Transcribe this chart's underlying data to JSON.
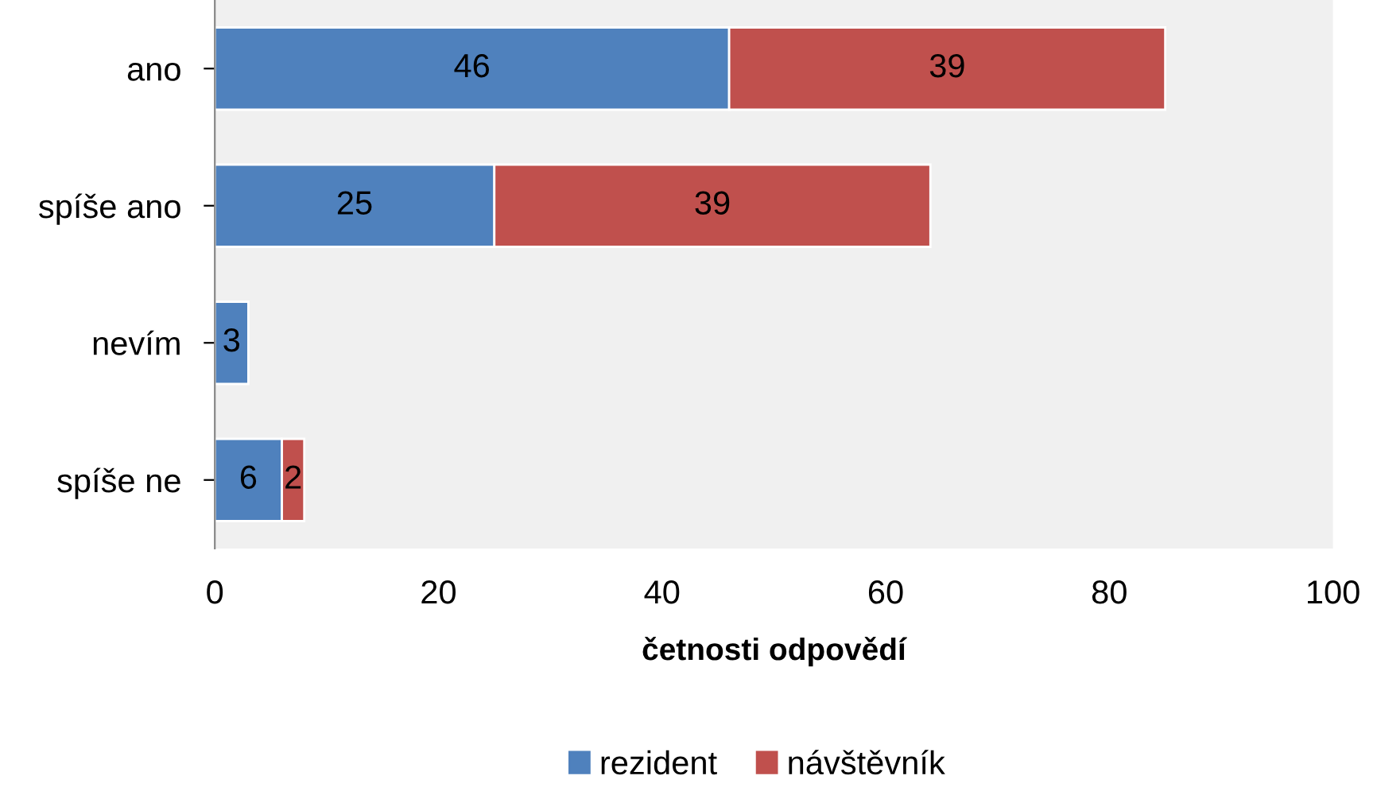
{
  "chart_data": {
    "type": "bar",
    "orientation": "horizontal",
    "stacked": true,
    "xlabel": "četnosti odpovědí",
    "categories": [
      "ano",
      "spíše ano",
      "nevím",
      "spíše ne"
    ],
    "series": [
      {
        "name": "rezident",
        "color": "#4f81bd",
        "values": [
          46,
          25,
          3,
          6
        ]
      },
      {
        "name": "návštěvník",
        "color": "#c0504d",
        "values": [
          39,
          39,
          null,
          2
        ]
      }
    ],
    "xlim": [
      0,
      100
    ],
    "xticks": [
      0,
      20,
      40,
      60,
      80,
      100
    ],
    "grid": false,
    "legend": "bottom",
    "data_labels": true
  }
}
